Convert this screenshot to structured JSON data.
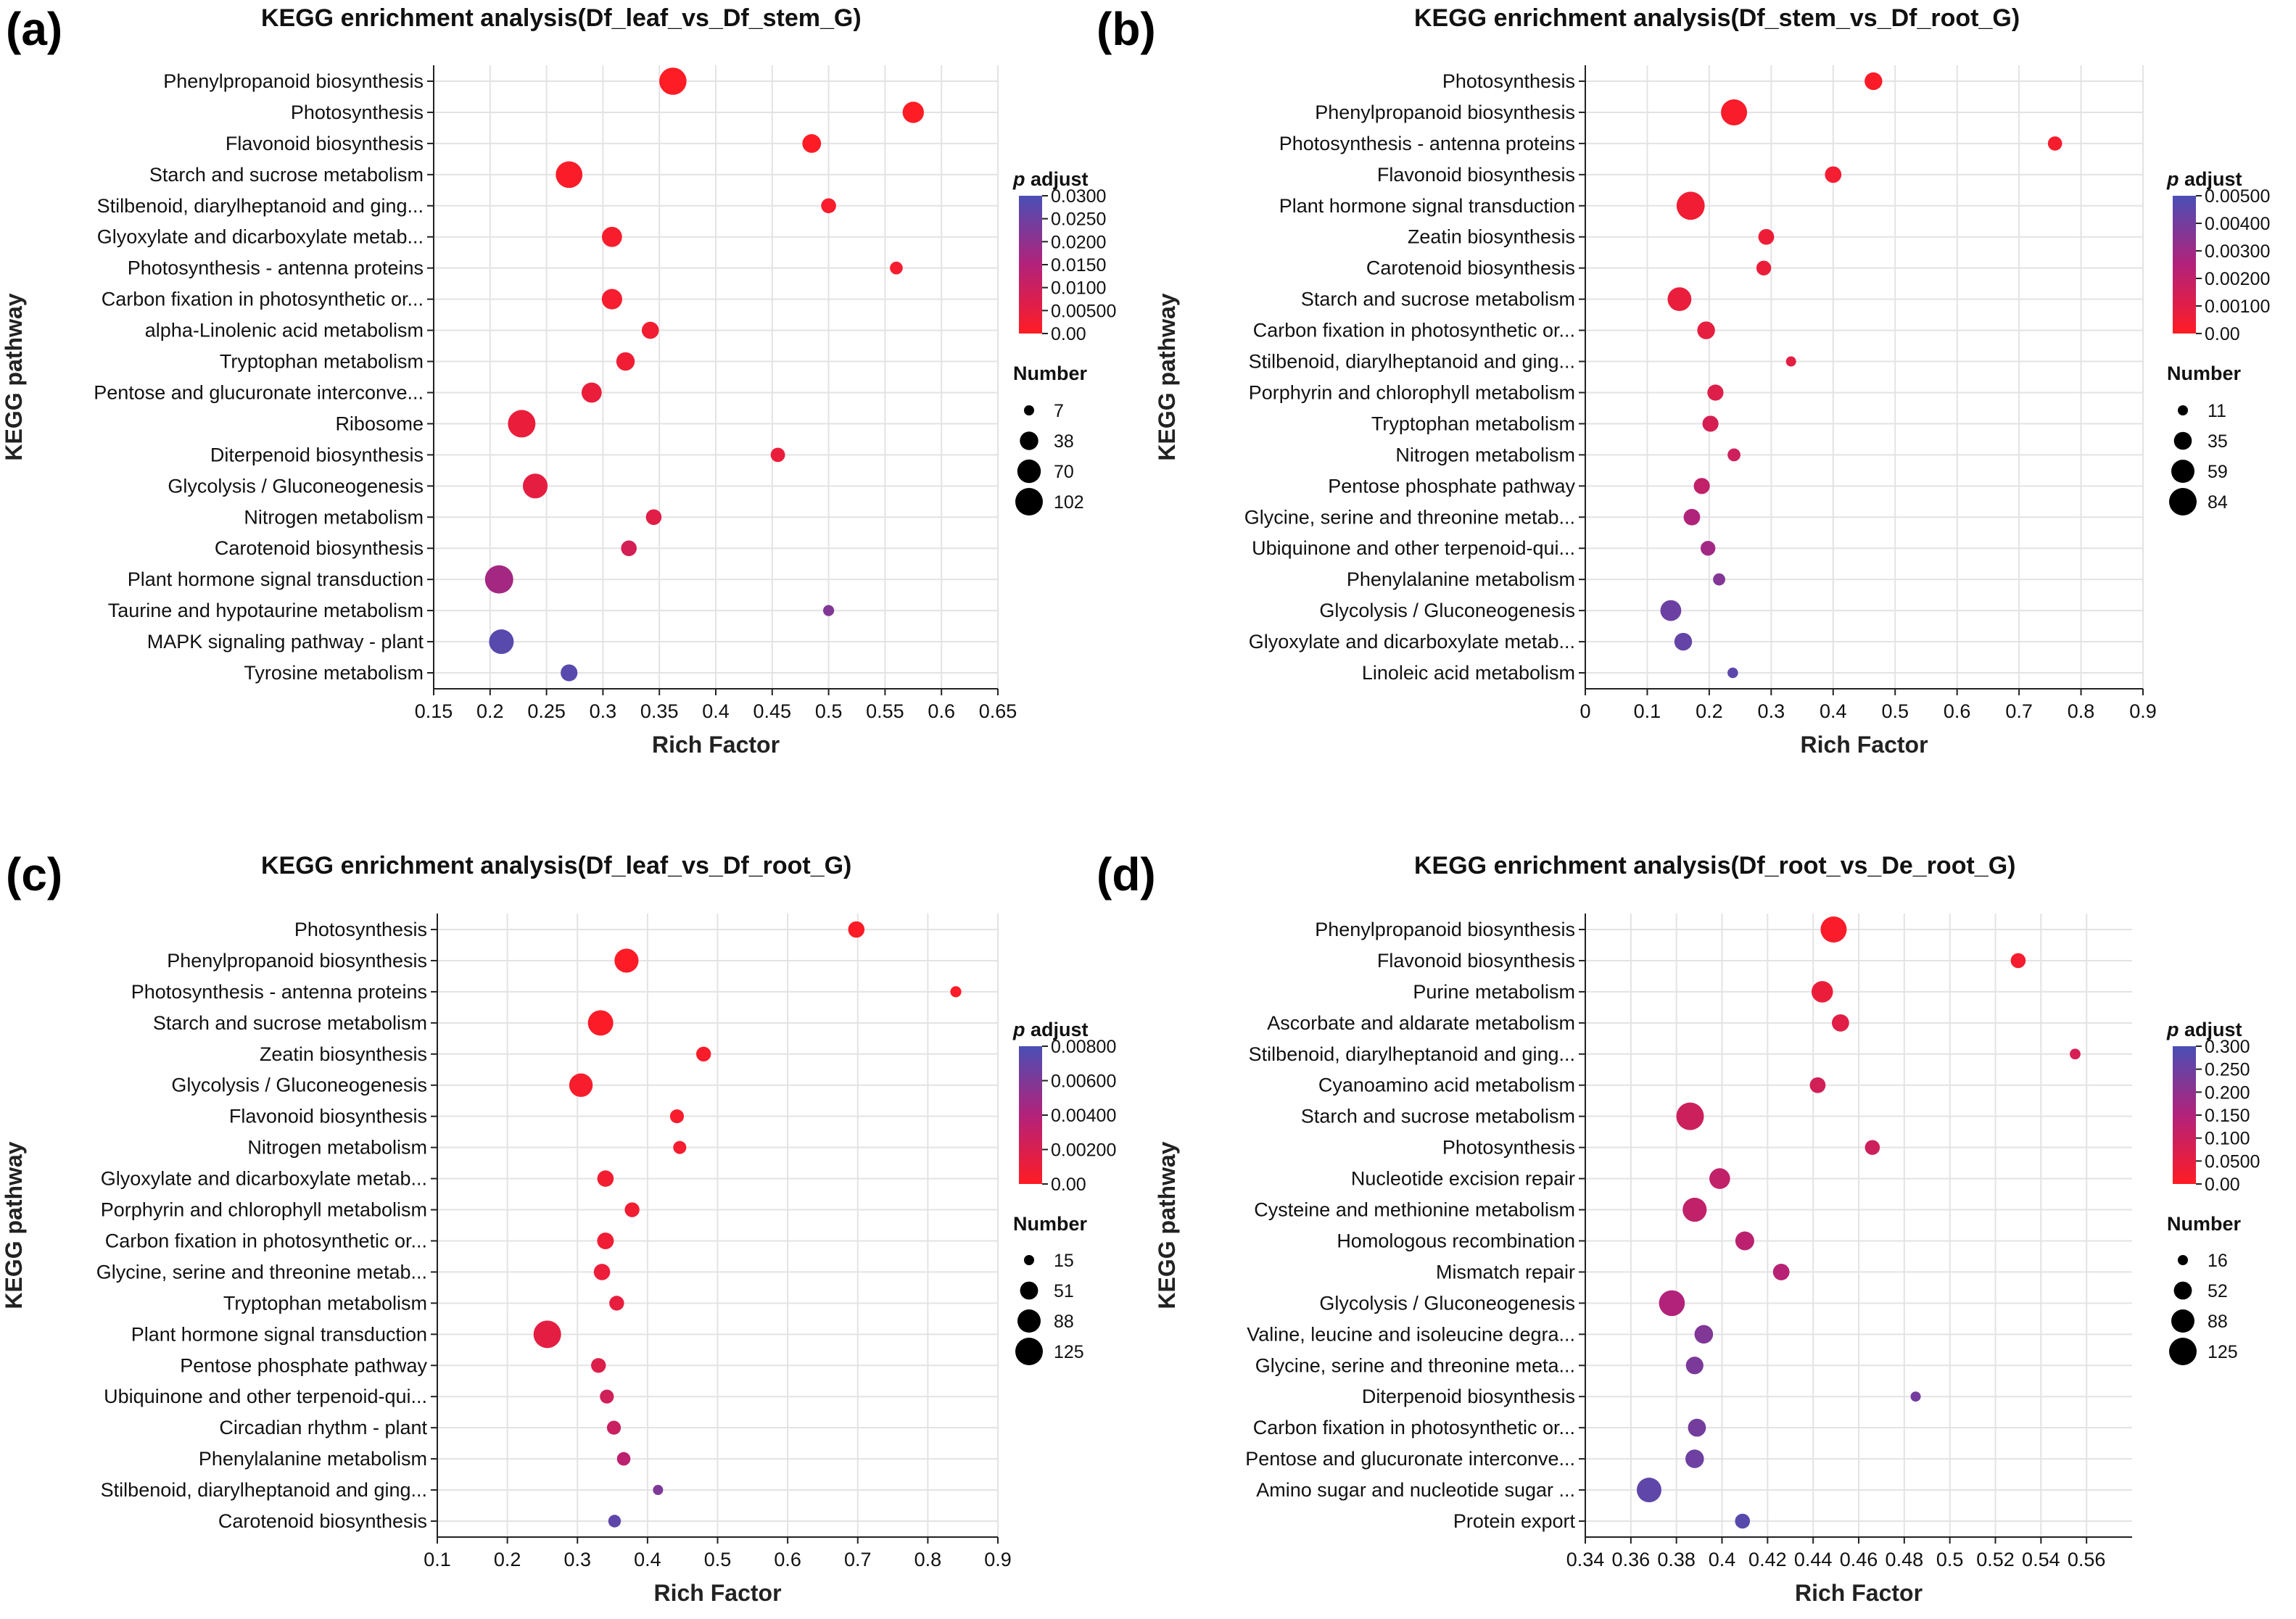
{
  "chart_data": [
    {
      "type": "scatter",
      "panel": "(a)",
      "title": "KEGG enrichment analysis(Df_leaf_vs_Df_stem_G)",
      "xlabel": "Rich Factor",
      "ylabel": "KEGG pathway",
      "xlim": [
        0.15,
        0.65
      ],
      "xticks": [
        "0.15",
        "0.2",
        "0.25",
        "0.3",
        "0.35",
        "0.4",
        "0.45",
        "0.5",
        "0.55",
        "0.6",
        "0.65"
      ],
      "color_legend": {
        "title_italic": "p",
        "title_rest": " adjust",
        "ticks": [
          "0.0300",
          "0.0250",
          "0.0200",
          "0.0150",
          "0.0100",
          "0.00500",
          "0.00"
        ],
        "max": 0.03
      },
      "size_legend": {
        "title": "Number",
        "values": [
          7,
          38,
          70,
          102
        ],
        "labels": [
          "7",
          "38",
          "70",
          "102"
        ]
      },
      "points": [
        {
          "pathway": "Phenylpropanoid biosynthesis",
          "x": 0.362,
          "count": 100,
          "padj": 0.0002
        },
        {
          "pathway": "Photosynthesis",
          "x": 0.575,
          "count": 55,
          "padj": 0.0001
        },
        {
          "pathway": "Flavonoid biosynthesis",
          "x": 0.485,
          "count": 40,
          "padj": 0.0003
        },
        {
          "pathway": "Starch and sucrose metabolism",
          "x": 0.27,
          "count": 95,
          "padj": 0.0008
        },
        {
          "pathway": "Stilbenoid, diarylheptanoid and ging...",
          "x": 0.5,
          "count": 22,
          "padj": 0.0015
        },
        {
          "pathway": "Glyoxylate and dicarboxylate metab...",
          "x": 0.308,
          "count": 48,
          "padj": 0.0015
        },
        {
          "pathway": "Photosynthesis - antenna proteins",
          "x": 0.56,
          "count": 14,
          "padj": 0.002
        },
        {
          "pathway": "Carbon fixation in photosynthetic or...",
          "x": 0.308,
          "count": 50,
          "padj": 0.002
        },
        {
          "pathway": "alpha-Linolenic acid metabolism",
          "x": 0.342,
          "count": 32,
          "padj": 0.0025
        },
        {
          "pathway": "Tryptophan metabolism",
          "x": 0.32,
          "count": 38,
          "padj": 0.003
        },
        {
          "pathway": "Pentose and glucuronate interconve...",
          "x": 0.29,
          "count": 48,
          "padj": 0.004
        },
        {
          "pathway": "Ribosome",
          "x": 0.228,
          "count": 102,
          "padj": 0.004
        },
        {
          "pathway": "Diterpenoid biosynthesis",
          "x": 0.455,
          "count": 20,
          "padj": 0.004
        },
        {
          "pathway": "Glycolysis / Gluconeogenesis",
          "x": 0.24,
          "count": 80,
          "padj": 0.005
        },
        {
          "pathway": "Nitrogen metabolism",
          "x": 0.345,
          "count": 25,
          "padj": 0.006
        },
        {
          "pathway": "Carotenoid biosynthesis",
          "x": 0.323,
          "count": 25,
          "padj": 0.0085
        },
        {
          "pathway": "Plant hormone signal transduction",
          "x": 0.208,
          "count": 108,
          "padj": 0.017
        },
        {
          "pathway": "Taurine and hypotaurine metabolism",
          "x": 0.5,
          "count": 9,
          "padj": 0.022
        },
        {
          "pathway": "MAPK signaling pathway - plant",
          "x": 0.21,
          "count": 78,
          "padj": 0.028
        },
        {
          "pathway": "Tyrosine metabolism",
          "x": 0.27,
          "count": 30,
          "padj": 0.028
        }
      ]
    },
    {
      "type": "scatter",
      "panel": "(b)",
      "title": "KEGG enrichment analysis(Df_stem_vs_Df_root_G)",
      "xlabel": "Rich Factor",
      "ylabel": "KEGG pathway",
      "xlim": [
        0,
        0.9
      ],
      "xticks": [
        "0",
        "0.1",
        "0.2",
        "0.3",
        "0.4",
        "0.5",
        "0.6",
        "0.7",
        "0.8",
        "0.9"
      ],
      "color_legend": {
        "title_italic": "p",
        "title_rest": " adjust",
        "ticks": [
          "0.00500",
          "0.00400",
          "0.00300",
          "0.00200",
          "0.00100",
          "0.00"
        ],
        "max": 0.0055
      },
      "size_legend": {
        "title": "Number",
        "values": [
          11,
          35,
          59,
          84
        ],
        "labels": [
          "11",
          "35",
          "59",
          "84"
        ]
      },
      "points": [
        {
          "pathway": "Photosynthesis",
          "x": 0.465,
          "count": 34,
          "padj": 0.0001
        },
        {
          "pathway": "Phenylpropanoid biosynthesis",
          "x": 0.24,
          "count": 75,
          "padj": 0.0002
        },
        {
          "pathway": "Photosynthesis - antenna proteins",
          "x": 0.758,
          "count": 22,
          "padj": 0.0003
        },
        {
          "pathway": "Flavonoid biosynthesis",
          "x": 0.4,
          "count": 30,
          "padj": 0.0004
        },
        {
          "pathway": "Plant hormone signal transduction",
          "x": 0.17,
          "count": 88,
          "padj": 0.0005
        },
        {
          "pathway": "Zeatin biosynthesis",
          "x": 0.292,
          "count": 27,
          "padj": 0.0006
        },
        {
          "pathway": "Carotenoid biosynthesis",
          "x": 0.288,
          "count": 24,
          "padj": 0.0007
        },
        {
          "pathway": "Starch and sucrose metabolism",
          "x": 0.152,
          "count": 62,
          "padj": 0.0008
        },
        {
          "pathway": "Carbon fixation in photosynthetic or...",
          "x": 0.195,
          "count": 34,
          "padj": 0.0009
        },
        {
          "pathway": "Stilbenoid, diarylheptanoid and ging...",
          "x": 0.332,
          "count": 11,
          "padj": 0.001
        },
        {
          "pathway": "Porphyrin and chlorophyll metabolism",
          "x": 0.21,
          "count": 28,
          "padj": 0.0012
        },
        {
          "pathway": "Tryptophan metabolism",
          "x": 0.202,
          "count": 28,
          "padj": 0.0015
        },
        {
          "pathway": "Nitrogen metabolism",
          "x": 0.24,
          "count": 18,
          "padj": 0.0018
        },
        {
          "pathway": "Pentose phosphate pathway",
          "x": 0.188,
          "count": 28,
          "padj": 0.0022
        },
        {
          "pathway": "Glycine, serine and threonine metab...",
          "x": 0.172,
          "count": 30,
          "padj": 0.0028
        },
        {
          "pathway": "Ubiquinone and other terpenoid-qui...",
          "x": 0.198,
          "count": 24,
          "padj": 0.0032
        },
        {
          "pathway": "Phenylalanine metabolism",
          "x": 0.216,
          "count": 16,
          "padj": 0.004
        },
        {
          "pathway": "Glycolysis / Gluconeogenesis",
          "x": 0.138,
          "count": 48,
          "padj": 0.0046
        },
        {
          "pathway": "Glyoxylate and dicarboxylate metab...",
          "x": 0.158,
          "count": 34,
          "padj": 0.0048
        },
        {
          "pathway": "Linoleic acid metabolism",
          "x": 0.238,
          "count": 12,
          "padj": 0.005
        }
      ]
    },
    {
      "type": "scatter",
      "panel": "(c)",
      "title": "KEGG enrichment analysis(Df_leaf_vs_Df_root_G)",
      "xlabel": "Rich Factor",
      "ylabel": "KEGG pathway",
      "xlim": [
        0.1,
        0.9
      ],
      "xticks": [
        "0.1",
        "0.2",
        "0.3",
        "0.4",
        "0.5",
        "0.6",
        "0.7",
        "0.8",
        "0.9"
      ],
      "color_legend": {
        "title_italic": "p",
        "title_rest": " adjust",
        "ticks": [
          "0.00800",
          "0.00600",
          "0.00400",
          "0.00200",
          "0.00"
        ],
        "max": 0.008
      },
      "size_legend": {
        "title": "Number",
        "values": [
          15,
          51,
          88,
          125
        ],
        "labels": [
          "15",
          "51",
          "88",
          "125"
        ]
      },
      "points": [
        {
          "pathway": "Photosynthesis",
          "x": 0.698,
          "count": 42,
          "padj": 0.0001
        },
        {
          "pathway": "Phenylpropanoid biosynthesis",
          "x": 0.37,
          "count": 95,
          "padj": 0.0001
        },
        {
          "pathway": "Photosynthesis - antenna proteins",
          "x": 0.84,
          "count": 18,
          "padj": 0.0002
        },
        {
          "pathway": "Starch and sucrose metabolism",
          "x": 0.333,
          "count": 105,
          "padj": 0.0002
        },
        {
          "pathway": "Zeatin biosynthesis",
          "x": 0.48,
          "count": 34,
          "padj": 0.0003
        },
        {
          "pathway": "Glycolysis / Gluconeogenesis",
          "x": 0.305,
          "count": 90,
          "padj": 0.0004
        },
        {
          "pathway": "Flavonoid biosynthesis",
          "x": 0.442,
          "count": 30,
          "padj": 0.0004
        },
        {
          "pathway": "Nitrogen metabolism",
          "x": 0.446,
          "count": 26,
          "padj": 0.0005
        },
        {
          "pathway": "Glyoxylate and dicarboxylate metab...",
          "x": 0.34,
          "count": 42,
          "padj": 0.0006
        },
        {
          "pathway": "Porphyrin and chlorophyll metabolism",
          "x": 0.378,
          "count": 34,
          "padj": 0.0007
        },
        {
          "pathway": "Carbon fixation in photosynthetic or...",
          "x": 0.34,
          "count": 44,
          "padj": 0.0008
        },
        {
          "pathway": "Glycine, serine and threonine metab...",
          "x": 0.335,
          "count": 42,
          "padj": 0.001
        },
        {
          "pathway": "Tryptophan metabolism",
          "x": 0.356,
          "count": 34,
          "padj": 0.0012
        },
        {
          "pathway": "Plant hormone signal transduction",
          "x": 0.257,
          "count": 125,
          "padj": 0.0014
        },
        {
          "pathway": "Pentose phosphate pathway",
          "x": 0.33,
          "count": 34,
          "padj": 0.0018
        },
        {
          "pathway": "Ubiquinone and other terpenoid-qui...",
          "x": 0.342,
          "count": 30,
          "padj": 0.0025
        },
        {
          "pathway": "Circadian rhythm - plant",
          "x": 0.352,
          "count": 30,
          "padj": 0.0028
        },
        {
          "pathway": "Phenylalanine metabolism",
          "x": 0.366,
          "count": 28,
          "padj": 0.0035
        },
        {
          "pathway": "Stilbenoid, diarylheptanoid and ging...",
          "x": 0.415,
          "count": 15,
          "padj": 0.006
        },
        {
          "pathway": "Carotenoid biosynthesis",
          "x": 0.353,
          "count": 24,
          "padj": 0.0072
        }
      ]
    },
    {
      "type": "scatter",
      "panel": "(d)",
      "title": "KEGG enrichment analysis(Df_root_vs_De_root_G)",
      "xlabel": "Rich Factor",
      "ylabel": "KEGG pathway",
      "xlim": [
        0.34,
        0.58
      ],
      "xticks": [
        "0.34",
        "0.36",
        "0.38",
        "0.4",
        "0.42",
        "0.44",
        "0.46",
        "0.48",
        "0.5",
        "0.52",
        "0.54",
        "0.56"
      ],
      "color_legend": {
        "title_italic": "p",
        "title_rest": " adjust",
        "ticks": [
          "0.300",
          "0.250",
          "0.200",
          "0.150",
          "0.100",
          "0.0500",
          "0.00"
        ],
        "max": 0.3
      },
      "size_legend": {
        "title": "Number",
        "values": [
          16,
          52,
          88,
          125
        ],
        "labels": [
          "16",
          "52",
          "88",
          "125"
        ]
      },
      "points": [
        {
          "pathway": "Phenylpropanoid biosynthesis",
          "x": 0.449,
          "count": 112,
          "padj": 0.01
        },
        {
          "pathway": "Flavonoid biosynthesis",
          "x": 0.53,
          "count": 36,
          "padj": 0.02
        },
        {
          "pathway": "Purine metabolism",
          "x": 0.444,
          "count": 75,
          "padj": 0.04
        },
        {
          "pathway": "Ascorbate and aldarate metabolism",
          "x": 0.452,
          "count": 48,
          "padj": 0.06
        },
        {
          "pathway": "Stilbenoid, diarylheptanoid and ging...",
          "x": 0.555,
          "count": 18,
          "padj": 0.08
        },
        {
          "pathway": "Cyanoamino acid metabolism",
          "x": 0.442,
          "count": 40,
          "padj": 0.09
        },
        {
          "pathway": "Starch and sucrose metabolism",
          "x": 0.386,
          "count": 125,
          "padj": 0.1
        },
        {
          "pathway": "Photosynthesis",
          "x": 0.466,
          "count": 36,
          "padj": 0.1
        },
        {
          "pathway": "Nucleotide excision repair",
          "x": 0.399,
          "count": 70,
          "padj": 0.12
        },
        {
          "pathway": "Cysteine and methionine metabolism",
          "x": 0.388,
          "count": 95,
          "padj": 0.12
        },
        {
          "pathway": "Homologous recombination",
          "x": 0.41,
          "count": 58,
          "padj": 0.13
        },
        {
          "pathway": "Mismatch repair",
          "x": 0.426,
          "count": 44,
          "padj": 0.14
        },
        {
          "pathway": "Glycolysis / Gluconeogenesis",
          "x": 0.378,
          "count": 110,
          "padj": 0.15
        },
        {
          "pathway": "Valine, leucine and isoleucine degra...",
          "x": 0.392,
          "count": 56,
          "padj": 0.22
        },
        {
          "pathway": "Glycine, serine and threonine meta...",
          "x": 0.388,
          "count": 50,
          "padj": 0.23
        },
        {
          "pathway": "Diterpenoid biosynthesis",
          "x": 0.485,
          "count": 16,
          "padj": 0.24
        },
        {
          "pathway": "Carbon fixation in photosynthetic or...",
          "x": 0.389,
          "count": 52,
          "padj": 0.24
        },
        {
          "pathway": "Pentose and glucuronate interconve...",
          "x": 0.388,
          "count": 56,
          "padj": 0.25
        },
        {
          "pathway": "Amino sugar and nucleotide sugar ...",
          "x": 0.368,
          "count": 100,
          "padj": 0.27
        },
        {
          "pathway": "Protein export",
          "x": 0.409,
          "count": 36,
          "padj": 0.28
        }
      ]
    }
  ]
}
